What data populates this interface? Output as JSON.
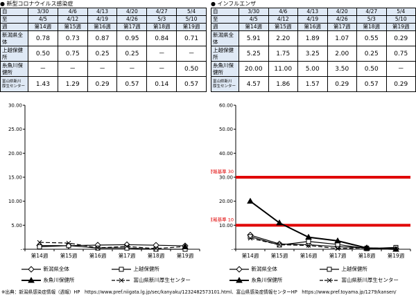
{
  "left_panel": {
    "title": "● 新型コロナウイルス感染症",
    "header_rows": [
      {
        "label": "自",
        "cells": [
          "3/30",
          "4/6",
          "4/13",
          "4/20",
          "4/27",
          "5/4"
        ]
      },
      {
        "label": "至",
        "cells": [
          "4/5",
          "4/12",
          "4/19",
          "4/26",
          "5/3",
          "5/10"
        ]
      },
      {
        "label": "週",
        "cells": [
          "第14週",
          "第15週",
          "第16週",
          "第17週",
          "第18週",
          "第19週"
        ]
      }
    ],
    "rows": [
      {
        "label_lines": [
          "新潟県全",
          "体"
        ],
        "small": false,
        "values": [
          "0.78",
          "0.73",
          "0.87",
          "0.95",
          "0.84",
          "0.71"
        ]
      },
      {
        "label_lines": [
          "上越保健",
          "所"
        ],
        "small": false,
        "values": [
          "0.50",
          "0.75",
          "0.25",
          "0.25",
          "－",
          "－"
        ]
      },
      {
        "label_lines": [
          "糸魚川保",
          "健所"
        ],
        "small": false,
        "values": [
          "－",
          "－",
          "－",
          "－",
          "－",
          "0.50"
        ]
      },
      {
        "label_lines": [
          "富山県新川",
          "厚生センター"
        ],
        "small": true,
        "values": [
          "1.43",
          "1.29",
          "0.29",
          "0.57",
          "0.14",
          "0.57"
        ]
      }
    ]
  },
  "right_panel": {
    "title": "● インフルエンザ",
    "header_rows": [
      {
        "label": "自",
        "cells": [
          "3/30",
          "4/6",
          "4/13",
          "4/20",
          "4/27",
          "5/4"
        ]
      },
      {
        "label": "至",
        "cells": [
          "4/5",
          "4/12",
          "4/19",
          "4/26",
          "5/3",
          "5/10"
        ]
      },
      {
        "label": "週",
        "cells": [
          "第14週",
          "第15週",
          "第16週",
          "第17週",
          "第18週",
          "第19週"
        ]
      }
    ],
    "rows": [
      {
        "label_lines": [
          "新潟県全",
          "体"
        ],
        "small": false,
        "values": [
          "5.91",
          "2.20",
          "1.89",
          "1.07",
          "0.55",
          "0.29"
        ]
      },
      {
        "label_lines": [
          "上越保健",
          "所"
        ],
        "small": false,
        "values": [
          "5.25",
          "1.75",
          "3.25",
          "2.00",
          "0.25",
          "0.75"
        ]
      },
      {
        "label_lines": [
          "糸魚川保",
          "健所"
        ],
        "small": false,
        "values": [
          "20.00",
          "11.00",
          "5.00",
          "3.50",
          "0.50",
          "－"
        ]
      },
      {
        "label_lines": [
          "富山県新川",
          "厚生センター"
        ],
        "small": true,
        "values": [
          "4.57",
          "1.86",
          "1.57",
          "0.29",
          "0.57",
          "0.29"
        ]
      }
    ]
  },
  "chart_data": [
    {
      "type": "line",
      "title": "",
      "x": [
        "第14週",
        "第15週",
        "第16週",
        "第17週",
        "第18週",
        "第19週"
      ],
      "ylim": [
        0,
        30
      ],
      "yticks": [
        "30.00",
        "25.00",
        "20.00",
        "15.00",
        "10.00",
        "5.00",
        "-"
      ],
      "grid": false,
      "series": [
        {
          "name": "新潟県全体",
          "marker": "diamond-open",
          "values": [
            0.78,
            0.73,
            0.87,
            0.95,
            0.84,
            0.71
          ]
        },
        {
          "name": "上越保健所",
          "marker": "square-open",
          "values": [
            0.5,
            0.75,
            0.25,
            0.25,
            0,
            0
          ]
        },
        {
          "name": "糸魚川保健所",
          "marker": "triangle-filled",
          "values": [
            null,
            null,
            null,
            null,
            null,
            0.5
          ]
        },
        {
          "name": "富山県新川厚生センター",
          "marker": "x-dashed",
          "values": [
            1.43,
            1.29,
            0.29,
            0.57,
            0.14,
            0.57
          ]
        }
      ]
    },
    {
      "type": "line",
      "title": "",
      "x": [
        "第14週",
        "第15週",
        "第16週",
        "第17週",
        "第18週",
        "第19週"
      ],
      "ylim": [
        0,
        60
      ],
      "yticks": [
        "60.00",
        "50.00",
        "40.00",
        "30.00",
        "20.00",
        "10.00",
        "-"
      ],
      "grid": false,
      "thresholds": [
        {
          "label": "警報基準 30",
          "value": 30,
          "color": "#e00000"
        },
        {
          "label": "注意報基準 10",
          "value": 10,
          "color": "#e00000"
        }
      ],
      "series": [
        {
          "name": "新潟県全体",
          "marker": "diamond-open",
          "values": [
            5.91,
            2.2,
            1.89,
            1.07,
            0.55,
            0.29
          ]
        },
        {
          "name": "上越保健所",
          "marker": "square-open",
          "values": [
            5.25,
            1.75,
            3.25,
            2.0,
            0.25,
            0.75
          ]
        },
        {
          "name": "糸魚川保健所",
          "marker": "triangle-filled",
          "values": [
            20.0,
            11.0,
            5.0,
            3.5,
            0.5,
            0.0
          ]
        },
        {
          "name": "富山県新川厚生センター",
          "marker": "x-dashed",
          "values": [
            4.57,
            1.86,
            1.57,
            0.29,
            0.57,
            0.29
          ]
        }
      ]
    }
  ],
  "source": "※出典：新潟県感染症情報（週報）HP　https://www.pref.niigata.lg.jp/sec/kanyaku/1232482573101.html、富山県感染症情報センターHP　https://www.pref.toyama.jp/1279/kansen/"
}
